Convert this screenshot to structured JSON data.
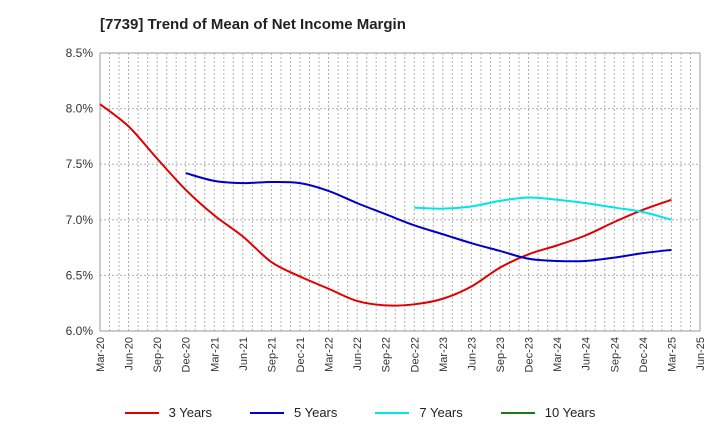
{
  "chart_data": {
    "type": "line",
    "title": "[7739]  Trend of Mean of Net Income Margin",
    "ylim": [
      6.0,
      8.5
    ],
    "y_ticks": [
      "6.0%",
      "6.5%",
      "7.0%",
      "7.5%",
      "8.0%",
      "8.5%"
    ],
    "y_tick_values": [
      6.0,
      6.5,
      7.0,
      7.5,
      8.0,
      8.5
    ],
    "x_labels": [
      "Mar-20",
      "Jun-20",
      "Sep-20",
      "Dec-20",
      "Mar-21",
      "Jun-21",
      "Sep-21",
      "Dec-21",
      "Mar-22",
      "Jun-22",
      "Sep-22",
      "Dec-22",
      "Mar-23",
      "Jun-23",
      "Sep-23",
      "Dec-23",
      "Mar-24",
      "Jun-24",
      "Sep-24",
      "Dec-24",
      "Mar-25",
      "Jun-25"
    ],
    "grid": true,
    "legend_position": "bottom",
    "series": [
      {
        "name": "3 Years",
        "color": "#e00000",
        "x": [
          "Mar-20",
          "Jun-20",
          "Sep-20",
          "Dec-20",
          "Mar-21",
          "Jun-21",
          "Sep-21",
          "Dec-21",
          "Mar-22",
          "Jun-22",
          "Sep-22",
          "Dec-22",
          "Mar-23",
          "Jun-23",
          "Sep-23",
          "Dec-23",
          "Mar-24",
          "Jun-24",
          "Sep-24",
          "Dec-24",
          "Mar-25"
        ],
        "values": [
          8.04,
          7.84,
          7.55,
          7.27,
          7.04,
          6.85,
          6.62,
          6.49,
          6.38,
          6.27,
          6.23,
          6.24,
          6.29,
          6.4,
          6.57,
          6.69,
          6.77,
          6.86,
          6.98,
          7.09,
          7.18
        ]
      },
      {
        "name": "5 Years",
        "color": "#0000cc",
        "x": [
          "Dec-20",
          "Mar-21",
          "Jun-21",
          "Sep-21",
          "Dec-21",
          "Mar-22",
          "Jun-22",
          "Sep-22",
          "Dec-22",
          "Mar-23",
          "Jun-23",
          "Sep-23",
          "Dec-23",
          "Mar-24",
          "Jun-24",
          "Sep-24",
          "Dec-24",
          "Mar-25"
        ],
        "values": [
          7.42,
          7.35,
          7.33,
          7.34,
          7.33,
          7.26,
          7.15,
          7.05,
          6.95,
          6.87,
          6.79,
          6.72,
          6.65,
          6.63,
          6.63,
          6.66,
          6.7,
          6.73
        ]
      },
      {
        "name": "7 Years",
        "color": "#00e5e5",
        "x": [
          "Dec-22",
          "Mar-23",
          "Jun-23",
          "Sep-23",
          "Dec-23",
          "Mar-24",
          "Jun-24",
          "Sep-24",
          "Dec-24",
          "Mar-25"
        ],
        "values": [
          7.11,
          7.1,
          7.12,
          7.17,
          7.2,
          7.18,
          7.15,
          7.11,
          7.07,
          7.0
        ]
      },
      {
        "name": "10 Years",
        "color": "#1a7a1a",
        "x": [],
        "values": []
      }
    ]
  }
}
